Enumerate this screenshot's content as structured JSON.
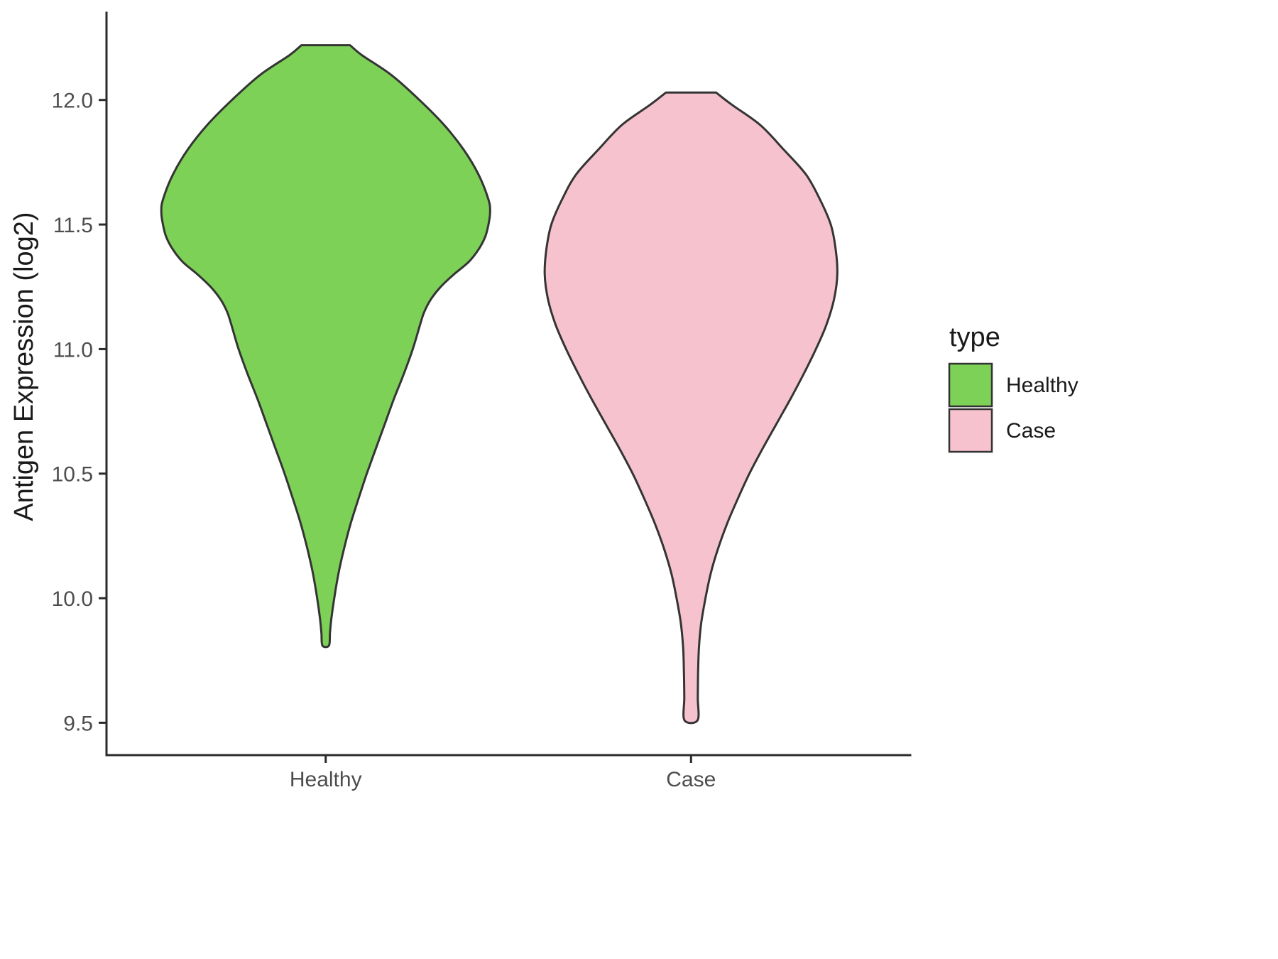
{
  "chart_data": {
    "type": "violin",
    "title": "",
    "xlabel": "",
    "ylabel": "Antigen Expression (log2)",
    "categories": [
      "Healthy",
      "Case"
    ],
    "y_ticks": [
      9.5,
      10.0,
      10.5,
      11.0,
      11.5,
      12.0
    ],
    "ylim": [
      9.37,
      12.35
    ],
    "grid": false,
    "legend": {
      "title": "type",
      "position": "right",
      "entries": [
        {
          "label": "Healthy",
          "color": "#7DD157"
        },
        {
          "label": "Case",
          "color": "#F6C2CE"
        }
      ]
    },
    "style": {
      "axis_color": "#2b2b2b",
      "outline_color": "#343434",
      "tick_label_color": "#4d4d4d",
      "text_color": "#1a1a1a",
      "background": "#ffffff"
    },
    "series": [
      {
        "name": "Healthy",
        "color": "#7DD157",
        "value_range": [
          9.81,
          12.22
        ],
        "profile": [
          [
            12.22,
            0.148
          ],
          [
            12.18,
            0.22
          ],
          [
            12.1,
            0.4
          ],
          [
            12.0,
            0.57
          ],
          [
            11.9,
            0.72
          ],
          [
            11.8,
            0.84
          ],
          [
            11.7,
            0.93
          ],
          [
            11.6,
            0.99
          ],
          [
            11.55,
            1.0
          ],
          [
            11.5,
            0.99
          ],
          [
            11.45,
            0.97
          ],
          [
            11.4,
            0.93
          ],
          [
            11.35,
            0.87
          ],
          [
            11.3,
            0.78
          ],
          [
            11.25,
            0.7
          ],
          [
            11.2,
            0.64
          ],
          [
            11.15,
            0.6
          ],
          [
            11.1,
            0.575
          ],
          [
            11.0,
            0.53
          ],
          [
            10.9,
            0.475
          ],
          [
            10.8,
            0.415
          ],
          [
            10.7,
            0.36
          ],
          [
            10.6,
            0.305
          ],
          [
            10.5,
            0.25
          ],
          [
            10.4,
            0.2
          ],
          [
            10.3,
            0.152
          ],
          [
            10.2,
            0.112
          ],
          [
            10.1,
            0.078
          ],
          [
            10.0,
            0.052
          ],
          [
            9.92,
            0.035
          ],
          [
            9.86,
            0.026
          ],
          [
            9.81,
            0.02
          ]
        ]
      },
      {
        "name": "Case",
        "color": "#F6C2CE",
        "value_range": [
          9.51,
          12.03
        ],
        "profile": [
          [
            12.03,
            0.152
          ],
          [
            11.98,
            0.25
          ],
          [
            11.9,
            0.42
          ],
          [
            11.8,
            0.565
          ],
          [
            11.7,
            0.7
          ],
          [
            11.6,
            0.785
          ],
          [
            11.5,
            0.85
          ],
          [
            11.4,
            0.88
          ],
          [
            11.3,
            0.89
          ],
          [
            11.2,
            0.87
          ],
          [
            11.1,
            0.825
          ],
          [
            11.0,
            0.76
          ],
          [
            10.9,
            0.685
          ],
          [
            10.8,
            0.605
          ],
          [
            10.7,
            0.52
          ],
          [
            10.6,
            0.435
          ],
          [
            10.5,
            0.355
          ],
          [
            10.4,
            0.285
          ],
          [
            10.3,
            0.22
          ],
          [
            10.2,
            0.165
          ],
          [
            10.1,
            0.12
          ],
          [
            10.0,
            0.088
          ],
          [
            9.9,
            0.062
          ],
          [
            9.8,
            0.048
          ],
          [
            9.7,
            0.043
          ],
          [
            9.6,
            0.041
          ],
          [
            9.51,
            0.04
          ]
        ]
      }
    ]
  }
}
